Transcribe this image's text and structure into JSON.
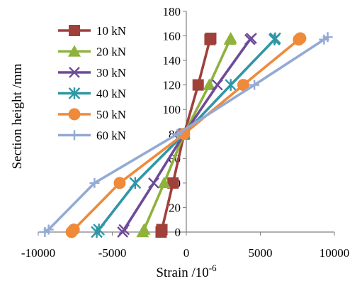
{
  "chart_data": {
    "type": "line",
    "xlabel": "Strain /10",
    "xlabel_sup": "-6",
    "ylabel": "Section height /mm",
    "xlim": [
      -10000,
      10000
    ],
    "ylim": [
      0,
      180
    ],
    "x_ticks": [
      "-10000",
      "-5000",
      "0",
      "5000",
      "10000"
    ],
    "x_tick_values": [
      -10000,
      -5000,
      0,
      5000,
      10000
    ],
    "y_ticks": [
      "0",
      "20",
      "40",
      "60",
      "80",
      "100",
      "120",
      "140",
      "160",
      "180"
    ],
    "y_tick_values": [
      0,
      20,
      40,
      60,
      80,
      100,
      120,
      140,
      160,
      180
    ],
    "grid": false,
    "legend_position": "top-left",
    "series": [
      {
        "name": "10 kN",
        "color": "#A0403A",
        "marker": "square",
        "points": [
          [
            -1700,
            0
          ],
          [
            -1650,
            2
          ],
          [
            -900,
            40
          ],
          [
            -150,
            80
          ],
          [
            800,
            120
          ],
          [
            1600,
            157
          ],
          [
            1650,
            158
          ]
        ]
      },
      {
        "name": "20 kN",
        "color": "#8FB23C",
        "marker": "triangle",
        "points": [
          [
            -2950,
            0
          ],
          [
            -2850,
            2
          ],
          [
            -1500,
            40
          ],
          [
            -150,
            80
          ],
          [
            1550,
            120
          ],
          [
            2950,
            157
          ],
          [
            3000,
            158
          ]
        ]
      },
      {
        "name": "30 kN",
        "color": "#6E4A9A",
        "marker": "x",
        "points": [
          [
            -4300,
            0
          ],
          [
            -4200,
            2
          ],
          [
            -2200,
            40
          ],
          [
            -150,
            80
          ],
          [
            2100,
            120
          ],
          [
            4300,
            157
          ],
          [
            4400,
            158
          ]
        ]
      },
      {
        "name": "40 kN",
        "color": "#2F96A6",
        "marker": "asterisk",
        "points": [
          [
            -6050,
            0
          ],
          [
            -5900,
            2
          ],
          [
            -3450,
            40
          ],
          [
            -150,
            80
          ],
          [
            3000,
            120
          ],
          [
            5950,
            157
          ],
          [
            6000,
            158
          ]
        ]
      },
      {
        "name": "50 kN",
        "color": "#EE8A3A",
        "marker": "circle",
        "points": [
          [
            -7750,
            0
          ],
          [
            -7600,
            2
          ],
          [
            -4500,
            40
          ],
          [
            -150,
            80
          ],
          [
            3850,
            120
          ],
          [
            7600,
            157
          ],
          [
            7700,
            158
          ]
        ]
      },
      {
        "name": "60 kN",
        "color": "#94AAD4",
        "marker": "plus",
        "points": [
          [
            -9550,
            0
          ],
          [
            -9300,
            2
          ],
          [
            -6200,
            40
          ],
          [
            -600,
            80
          ],
          [
            4600,
            120
          ],
          [
            9300,
            157
          ],
          [
            9550,
            159
          ]
        ]
      }
    ]
  }
}
